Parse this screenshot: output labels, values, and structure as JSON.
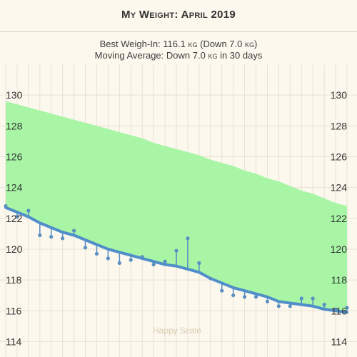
{
  "header": {
    "title": "My Weight: April 2019"
  },
  "summary": {
    "best_prefix": "Best Weigh-In: ",
    "best_value": "116.1",
    "best_unit": "kg",
    "best_mid": " (Down ",
    "best_change": "7.0",
    "best_unit2": "kg",
    "best_suffix": ")",
    "avg_prefix": "Moving Average: Down ",
    "avg_change": "7.0",
    "avg_unit": "kg",
    "avg_suffix": " in 30 days"
  },
  "watermark": "Happy Scale",
  "colors": {
    "background": "#fcf8ee",
    "grid": "#e8e2d2",
    "goal_band": "#a8f5a6",
    "trend_line": "#4f8ec9",
    "weigh_in": "#5a8fc2"
  },
  "chart_data": {
    "type": "line",
    "title": "My Weight: April 2019",
    "xlabel": "",
    "ylabel": "",
    "days": 30,
    "y_ticks": [
      114,
      116,
      118,
      120,
      122,
      124,
      126,
      128,
      130
    ],
    "ylim": [
      113,
      132
    ],
    "grid": true,
    "series": [
      {
        "values": [
          122.7,
          122.4,
          122.1,
          121.7,
          121.4,
          121.1,
          120.9,
          120.6,
          120.3,
          120.0,
          119.8,
          119.6,
          119.4,
          119.2,
          119.0,
          118.9,
          118.7,
          118.5,
          118.1,
          117.8,
          117.5,
          117.3,
          117.1,
          116.9,
          116.6,
          116.5,
          116.4,
          116.3,
          116.1,
          116.0,
          115.9
        ]
      },
      {
        "values": [
          122.8,
          122.1,
          122.5,
          120.9,
          120.8,
          120.7,
          121.2,
          120.1,
          119.7,
          119.4,
          119.1,
          119.3,
          119.5,
          119.0,
          119.2,
          119.9,
          120.7,
          119.1,
          118.1,
          117.3,
          117.0,
          116.9,
          116.9,
          116.6,
          116.3,
          116.3,
          116.8,
          116.8,
          116.4,
          116.1,
          116.2
        ]
      },
      {
        "values": [
          129.6,
          129.4,
          129.2,
          129.0,
          128.8,
          128.6,
          128.4,
          128.2,
          128.0,
          127.8,
          127.6,
          127.4,
          127.2,
          126.9,
          126.7,
          126.5,
          126.3,
          126.1,
          125.8,
          125.6,
          125.4,
          125.1,
          124.9,
          124.6,
          124.4,
          124.1,
          123.8,
          123.6,
          123.3,
          123.0,
          122.8
        ]
      }
    ]
  }
}
